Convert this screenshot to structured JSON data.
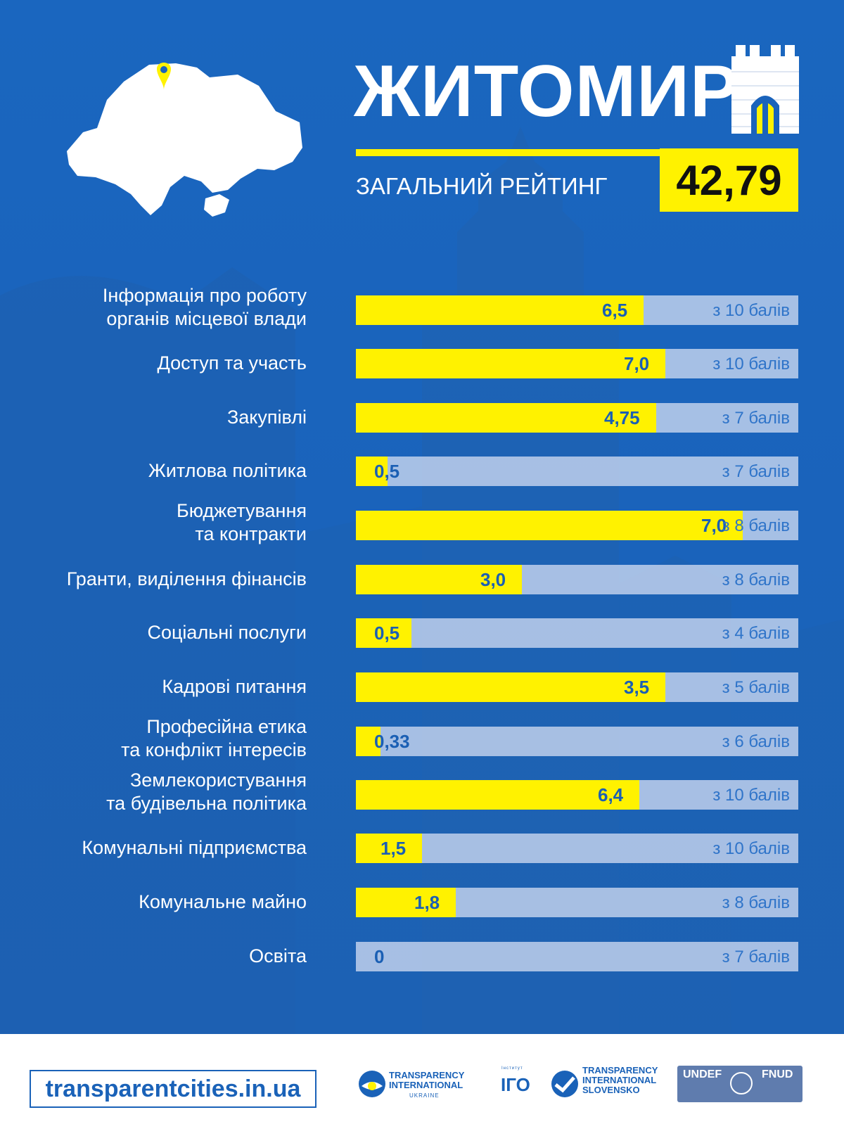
{
  "header": {
    "city": "ЖИТОМИР",
    "overall_label": "ЗАГАЛЬНИЙ РЕЙТИНГ",
    "overall_score": "42,79"
  },
  "colors": {
    "background": "#1a63bb",
    "accent_yellow": "#fff200",
    "track": "#c6d4ee",
    "value_text": "#1a5fb4"
  },
  "chart_data": {
    "type": "bar",
    "orientation": "horizontal",
    "categories": [
      "Інформація про роботу\nорганів місцевої влади",
      "Доступ та участь",
      "Закупівлі",
      "Житлова політика",
      "Бюджетування \nта контракти",
      "Гранти, виділення фінансів",
      "Соціальні послуги",
      "Кадрові питання",
      "Професійна етика\nта конфлікт інтересів",
      "Землекористування\nта будівельна політика",
      "Комунальні підприємства",
      "Комунальне майно",
      "Освіта"
    ],
    "values": [
      6.5,
      7.0,
      4.75,
      0.5,
      7.0,
      3.0,
      0.5,
      3.5,
      0.33,
      6.4,
      1.5,
      1.8,
      0
    ],
    "value_labels": [
      "6,5",
      "7,0",
      "4,75",
      "0,5",
      "7,0",
      "3,0",
      "0,5",
      "3,5",
      "0,33",
      "6,4",
      "1,5",
      "1,8",
      "0"
    ],
    "max_values": [
      10,
      10,
      7,
      7,
      8,
      8,
      4,
      5,
      6,
      10,
      10,
      8,
      7
    ],
    "max_labels": [
      "з 10 балів",
      "з 10 балів",
      "з 7 балів",
      "з 7 балів",
      "з 8 балів",
      "з 8 балів",
      "з 4 балів",
      "з 5 балів",
      "з 6 балів",
      "з 10 балів",
      "з 10 балів",
      "з 8 балів",
      "з 7 балів"
    ]
  },
  "footer": {
    "url": "transparentcities.in.ua",
    "logos": [
      {
        "name": "TRANSPARENCY\nINTERNATIONAL",
        "sub": "UKRAINE"
      },
      {
        "name": "Інститут",
        "sub": "ІГО"
      },
      {
        "name": "TRANSPARENCY\nINTERNATIONAL\nSLOVENSKO",
        "sub": ""
      },
      {
        "name": "UNDEF",
        "sub": "FNUD"
      }
    ]
  }
}
